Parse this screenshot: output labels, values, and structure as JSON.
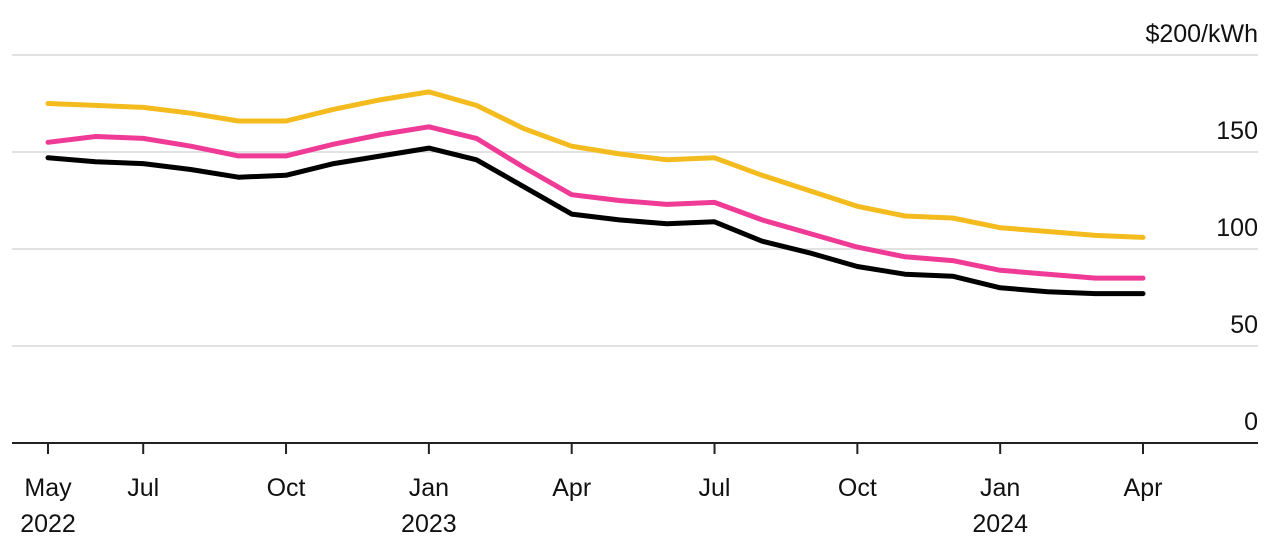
{
  "chart_data": {
    "type": "line",
    "title": "",
    "xlabel": "",
    "ylabel": "",
    "y_unit_label": "$200/kWh",
    "ylim": [
      0,
      200
    ],
    "yticks": [
      0,
      50,
      100,
      150,
      200
    ],
    "ytick_labels": [
      "0",
      "50",
      "100",
      "150",
      "$200/kWh"
    ],
    "grid": true,
    "x": [
      "2022-05",
      "2022-06",
      "2022-07",
      "2022-08",
      "2022-09",
      "2022-10",
      "2022-11",
      "2022-12",
      "2023-01",
      "2023-02",
      "2023-03",
      "2023-04",
      "2023-05",
      "2023-06",
      "2023-07",
      "2023-08",
      "2023-09",
      "2023-10",
      "2023-11",
      "2023-12",
      "2024-01",
      "2024-02",
      "2024-03",
      "2024-04"
    ],
    "xticks": [
      {
        "x": "2022-05",
        "label": "May",
        "year": "2022"
      },
      {
        "x": "2022-07",
        "label": "Jul",
        "year": ""
      },
      {
        "x": "2022-10",
        "label": "Oct",
        "year": ""
      },
      {
        "x": "2023-01",
        "label": "Jan",
        "year": "2023"
      },
      {
        "x": "2023-04",
        "label": "Apr",
        "year": ""
      },
      {
        "x": "2023-07",
        "label": "Jul",
        "year": ""
      },
      {
        "x": "2023-10",
        "label": "Oct",
        "year": ""
      },
      {
        "x": "2024-01",
        "label": "Jan",
        "year": "2024"
      },
      {
        "x": "2024-04",
        "label": "Apr",
        "year": ""
      }
    ],
    "series": [
      {
        "color": "#f4bb1f",
        "values": [
          175,
          174,
          173,
          170,
          166,
          166,
          172,
          177,
          181,
          174,
          162,
          153,
          149,
          146,
          147,
          138,
          130,
          122,
          117,
          116,
          111,
          109,
          107,
          106
        ]
      },
      {
        "color": "#ef3a96",
        "values": [
          155,
          158,
          157,
          153,
          148,
          148,
          154,
          159,
          163,
          157,
          142,
          128,
          125,
          123,
          124,
          115,
          108,
          101,
          96,
          94,
          89,
          87,
          85,
          85
        ]
      },
      {
        "color": "#000000",
        "values": [
          147,
          145,
          144,
          141,
          137,
          138,
          144,
          148,
          152,
          146,
          132,
          118,
          115,
          113,
          114,
          104,
          98,
          91,
          87,
          86,
          80,
          78,
          77,
          77
        ]
      }
    ]
  }
}
